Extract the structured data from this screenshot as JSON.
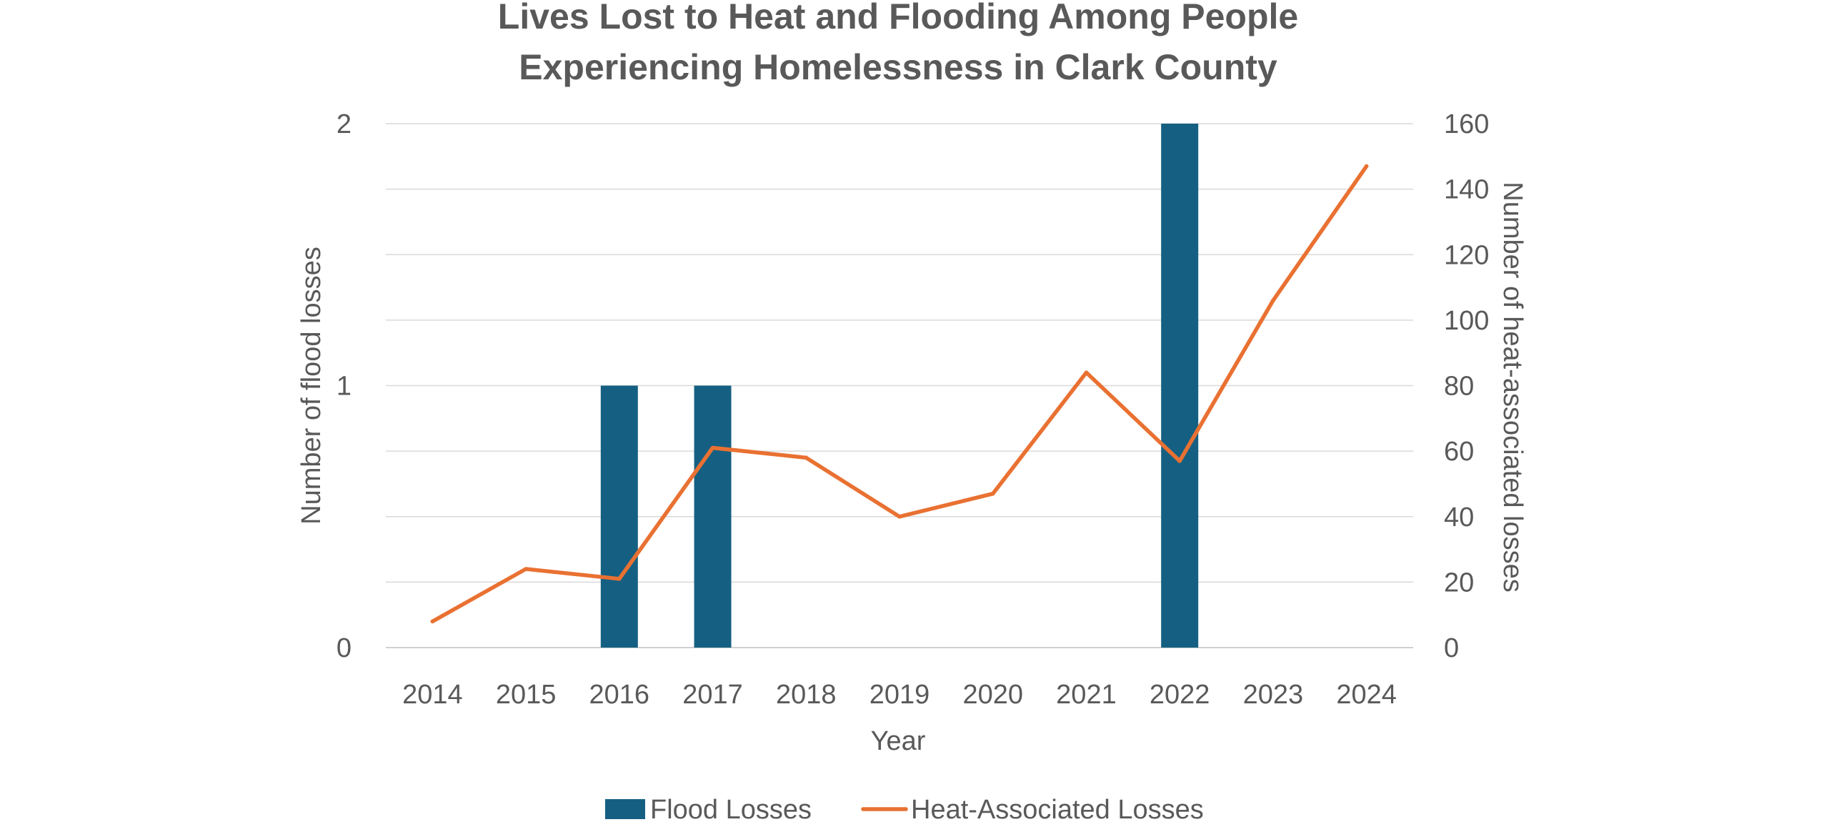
{
  "chart_data": {
    "type": "bar",
    "title_lines": [
      "Lives Lost to Heat and Flooding Among People",
      "Experiencing Homelessness in Clark County"
    ],
    "xlabel": "Year",
    "ylabel_left": "Number of flood losses",
    "ylabel_right": "Number of heat-associated losses",
    "categories": [
      "2014",
      "2015",
      "2016",
      "2017",
      "2018",
      "2019",
      "2020",
      "2021",
      "2022",
      "2023",
      "2024"
    ],
    "ylim_left": [
      0,
      2
    ],
    "yticks_left": [
      "0",
      "1",
      "2"
    ],
    "ylim_right": [
      0,
      160
    ],
    "yticks_right": [
      "0",
      "20",
      "40",
      "60",
      "80",
      "100",
      "120",
      "140",
      "160"
    ],
    "grid": true,
    "legend_position": "bottom",
    "series": [
      {
        "name": "Flood Losses",
        "kind": "bar",
        "axis": "left",
        "color": "#156082",
        "values": [
          0,
          0,
          1,
          1,
          0,
          0,
          0,
          0,
          2,
          0,
          0
        ]
      },
      {
        "name": "Heat-Associated Losses",
        "kind": "line",
        "axis": "right",
        "color": "#E97132",
        "values": [
          8,
          24,
          21,
          61,
          58,
          40,
          47,
          84,
          57,
          106,
          147
        ]
      }
    ]
  }
}
